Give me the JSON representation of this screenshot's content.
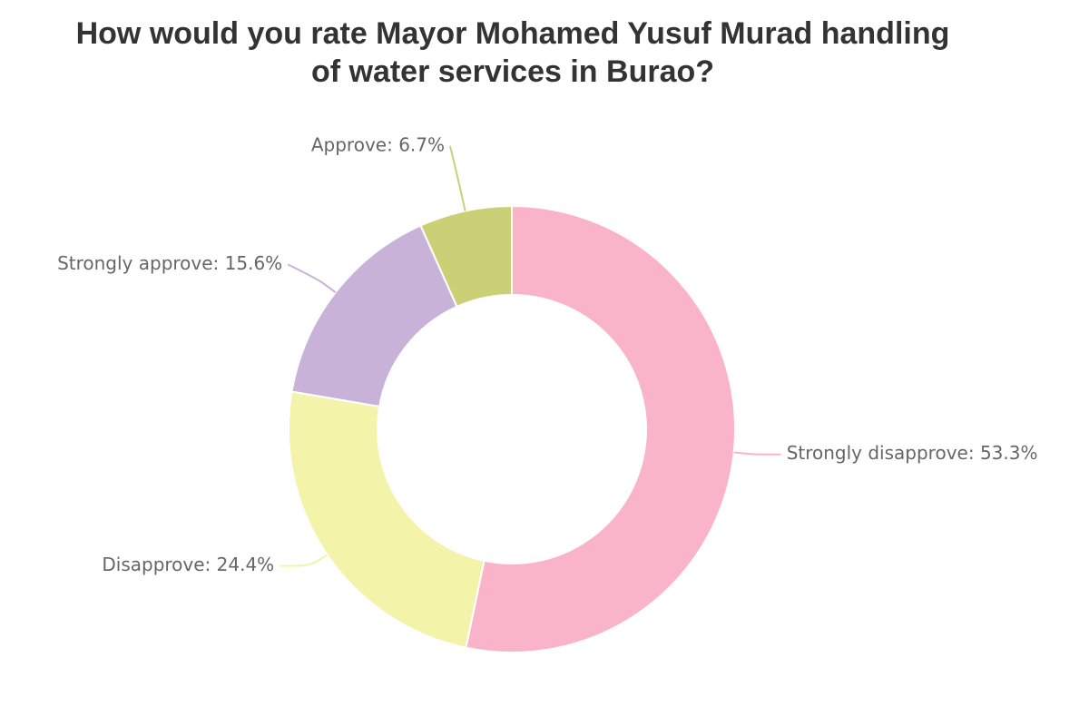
{
  "chart_data": {
    "type": "pie",
    "title_lines": [
      "How would you rate Mayor Mohamed Yusuf Murad handling",
      "of water services in Burao?"
    ],
    "categories": [
      "Strongly disapprove",
      "Disapprove",
      "Strongly approve",
      "Approve"
    ],
    "values": [
      53.3,
      24.4,
      15.6,
      6.7
    ],
    "value_suffix": "%",
    "colors": [
      "#f9b4c9",
      "#f3f3a9",
      "#c9b2d7",
      "#cbd077"
    ],
    "donut": true,
    "start_angle": "top",
    "direction": "clockwise",
    "legend": "none"
  }
}
